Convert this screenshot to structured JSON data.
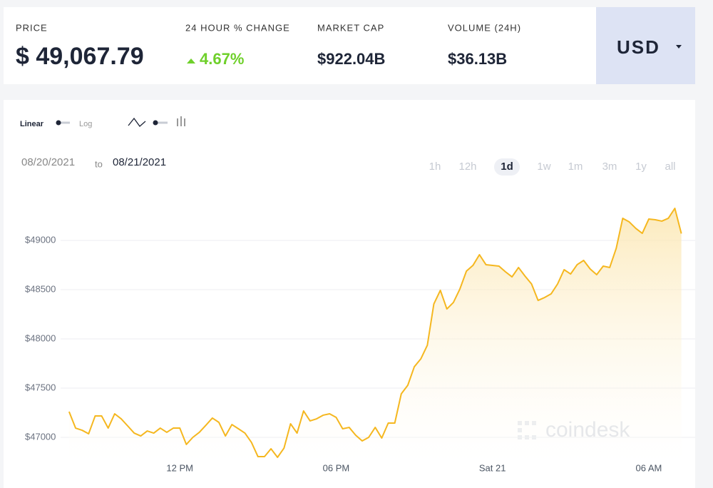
{
  "header": {
    "stats": [
      {
        "label": "PRICE",
        "value": "$ 49,067.79"
      },
      {
        "label": "24 HOUR % CHANGE",
        "value": "4.67%"
      },
      {
        "label": "MARKET CAP",
        "value": "$922.04B"
      },
      {
        "label": "VOLUME (24H)",
        "value": "$36.13B"
      }
    ],
    "currency": "USD"
  },
  "controls": {
    "scale_options": [
      "Linear",
      "Log"
    ],
    "date_from": "08/20/2021",
    "date_separator": "to",
    "date_to": "08/21/2021",
    "ranges": [
      "1h",
      "12h",
      "1d",
      "1w",
      "1m",
      "3m",
      "1y",
      "all"
    ],
    "selected_range": "1d"
  },
  "chart_data": {
    "type": "area",
    "color": "#f5b71f",
    "grid": true,
    "watermark": "coindesk",
    "x": [
      7.75,
      8,
      8.25,
      8.5,
      8.75,
      9,
      9.25,
      9.5,
      9.75,
      10,
      10.25,
      10.5,
      10.75,
      11,
      11.25,
      11.5,
      11.75,
      12,
      12.25,
      12.5,
      12.75,
      13,
      13.25,
      13.5,
      13.75,
      14,
      14.25,
      14.5,
      14.75,
      15,
      15.25,
      15.5,
      15.75,
      16,
      16.25,
      16.5,
      16.75,
      17,
      17.25,
      17.5,
      17.75,
      18,
      18.25,
      18.5,
      18.75,
      19,
      19.25,
      19.5,
      19.75,
      20,
      20.25,
      20.5,
      20.75,
      21,
      21.25,
      21.5,
      21.75,
      22,
      22.25,
      22.5,
      22.75,
      23,
      23.25,
      23.5,
      23.75,
      24,
      24.25,
      24.5,
      24.75,
      25,
      25.25,
      25.5,
      25.75,
      26,
      26.25,
      26.5,
      26.75,
      27,
      27.25,
      27.5,
      27.75,
      28,
      28.25,
      28.5,
      28.75,
      29,
      29.25,
      29.5,
      29.75,
      30,
      30.25,
      30.5,
      30.75,
      31,
      31.25
    ],
    "values": [
      47261,
      47094,
      47072,
      47036,
      47217,
      47217,
      47094,
      47239,
      47188,
      47116,
      47043,
      47014,
      47065,
      47043,
      47094,
      47051,
      47094,
      47094,
      46928,
      47000,
      47051,
      47123,
      47196,
      47152,
      47014,
      47130,
      47087,
      47043,
      46949,
      46804,
      46804,
      46884,
      46797,
      46891,
      47138,
      47043,
      47268,
      47167,
      47188,
      47225,
      47239,
      47203,
      47087,
      47101,
      47022,
      46964,
      47000,
      47101,
      46993,
      47145,
      47145,
      47442,
      47529,
      47717,
      47797,
      47935,
      48355,
      48493,
      48304,
      48370,
      48507,
      48688,
      48746,
      48855,
      48754,
      48746,
      48739,
      48681,
      48630,
      48725,
      48638,
      48558,
      48391,
      48420,
      48457,
      48558,
      48703,
      48659,
      48754,
      48797,
      48710,
      48652,
      48739,
      48725,
      48920,
      49225,
      49188,
      49123,
      49072,
      49217,
      49210,
      49196,
      49225,
      49326,
      49070
    ],
    "xlim": [
      7.5,
      31.5
    ],
    "xticks": [
      {
        "value": 12,
        "label": "12 PM"
      },
      {
        "value": 18,
        "label": "06 PM"
      },
      {
        "value": 24,
        "label": "Sat 21"
      },
      {
        "value": 30,
        "label": "06 AM"
      }
    ],
    "ylim": [
      46750,
      49500
    ],
    "yticks": [
      {
        "value": 47000,
        "label": "$47000"
      },
      {
        "value": 47500,
        "label": "$47500"
      },
      {
        "value": 48000,
        "label": "$48000"
      },
      {
        "value": 48500,
        "label": "$48500"
      },
      {
        "value": 49000,
        "label": "$49000"
      }
    ]
  }
}
